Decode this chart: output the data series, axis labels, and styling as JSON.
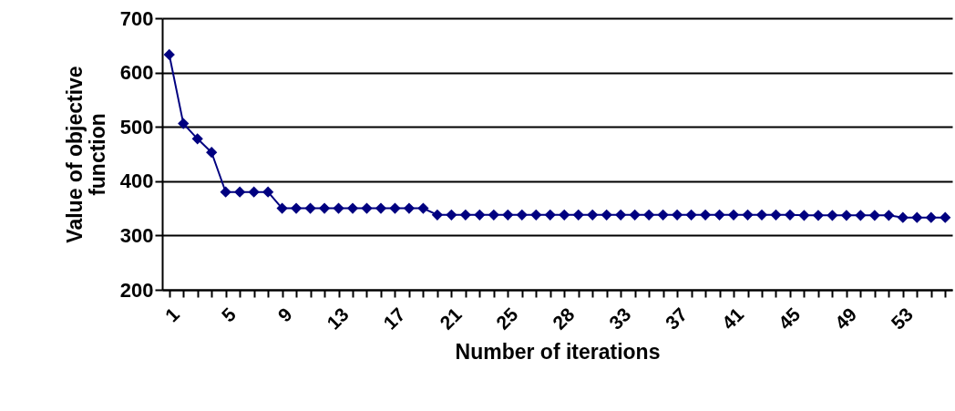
{
  "chart_data": {
    "type": "line",
    "xlabel": "Number of iterations",
    "ylabel": "Value of objective function",
    "categories": [
      "1",
      null,
      null,
      null,
      "5",
      null,
      null,
      null,
      "9",
      null,
      null,
      null,
      "13",
      null,
      null,
      null,
      "17",
      null,
      null,
      null,
      "21",
      null,
      null,
      null,
      "25",
      null,
      null,
      null,
      "28",
      null,
      null,
      null,
      "33",
      null,
      null,
      null,
      "37",
      null,
      null,
      null,
      "41",
      null,
      null,
      null,
      "45",
      null,
      null,
      null,
      "49",
      null,
      null,
      null,
      "53",
      null,
      null,
      null
    ],
    "series": [
      {
        "color": "#000080",
        "values": [
          633,
          506,
          478,
          453,
          380,
          380,
          380,
          380,
          350,
          350,
          350,
          350,
          350,
          350,
          350,
          350,
          350,
          350,
          350,
          338,
          338,
          338,
          338,
          338,
          338,
          338,
          338,
          338,
          338,
          338,
          338,
          338,
          338,
          338,
          338,
          338,
          338,
          338,
          338,
          338,
          338,
          338,
          338,
          338,
          338,
          337,
          337,
          337,
          337,
          337,
          337,
          337,
          333,
          333,
          333,
          333
        ]
      }
    ],
    "ylim": [
      200,
      700
    ],
    "yticks": [
      200,
      300,
      400,
      500,
      600,
      700
    ],
    "grid": "y",
    "marker": "diamond",
    "line_style": "solid"
  }
}
